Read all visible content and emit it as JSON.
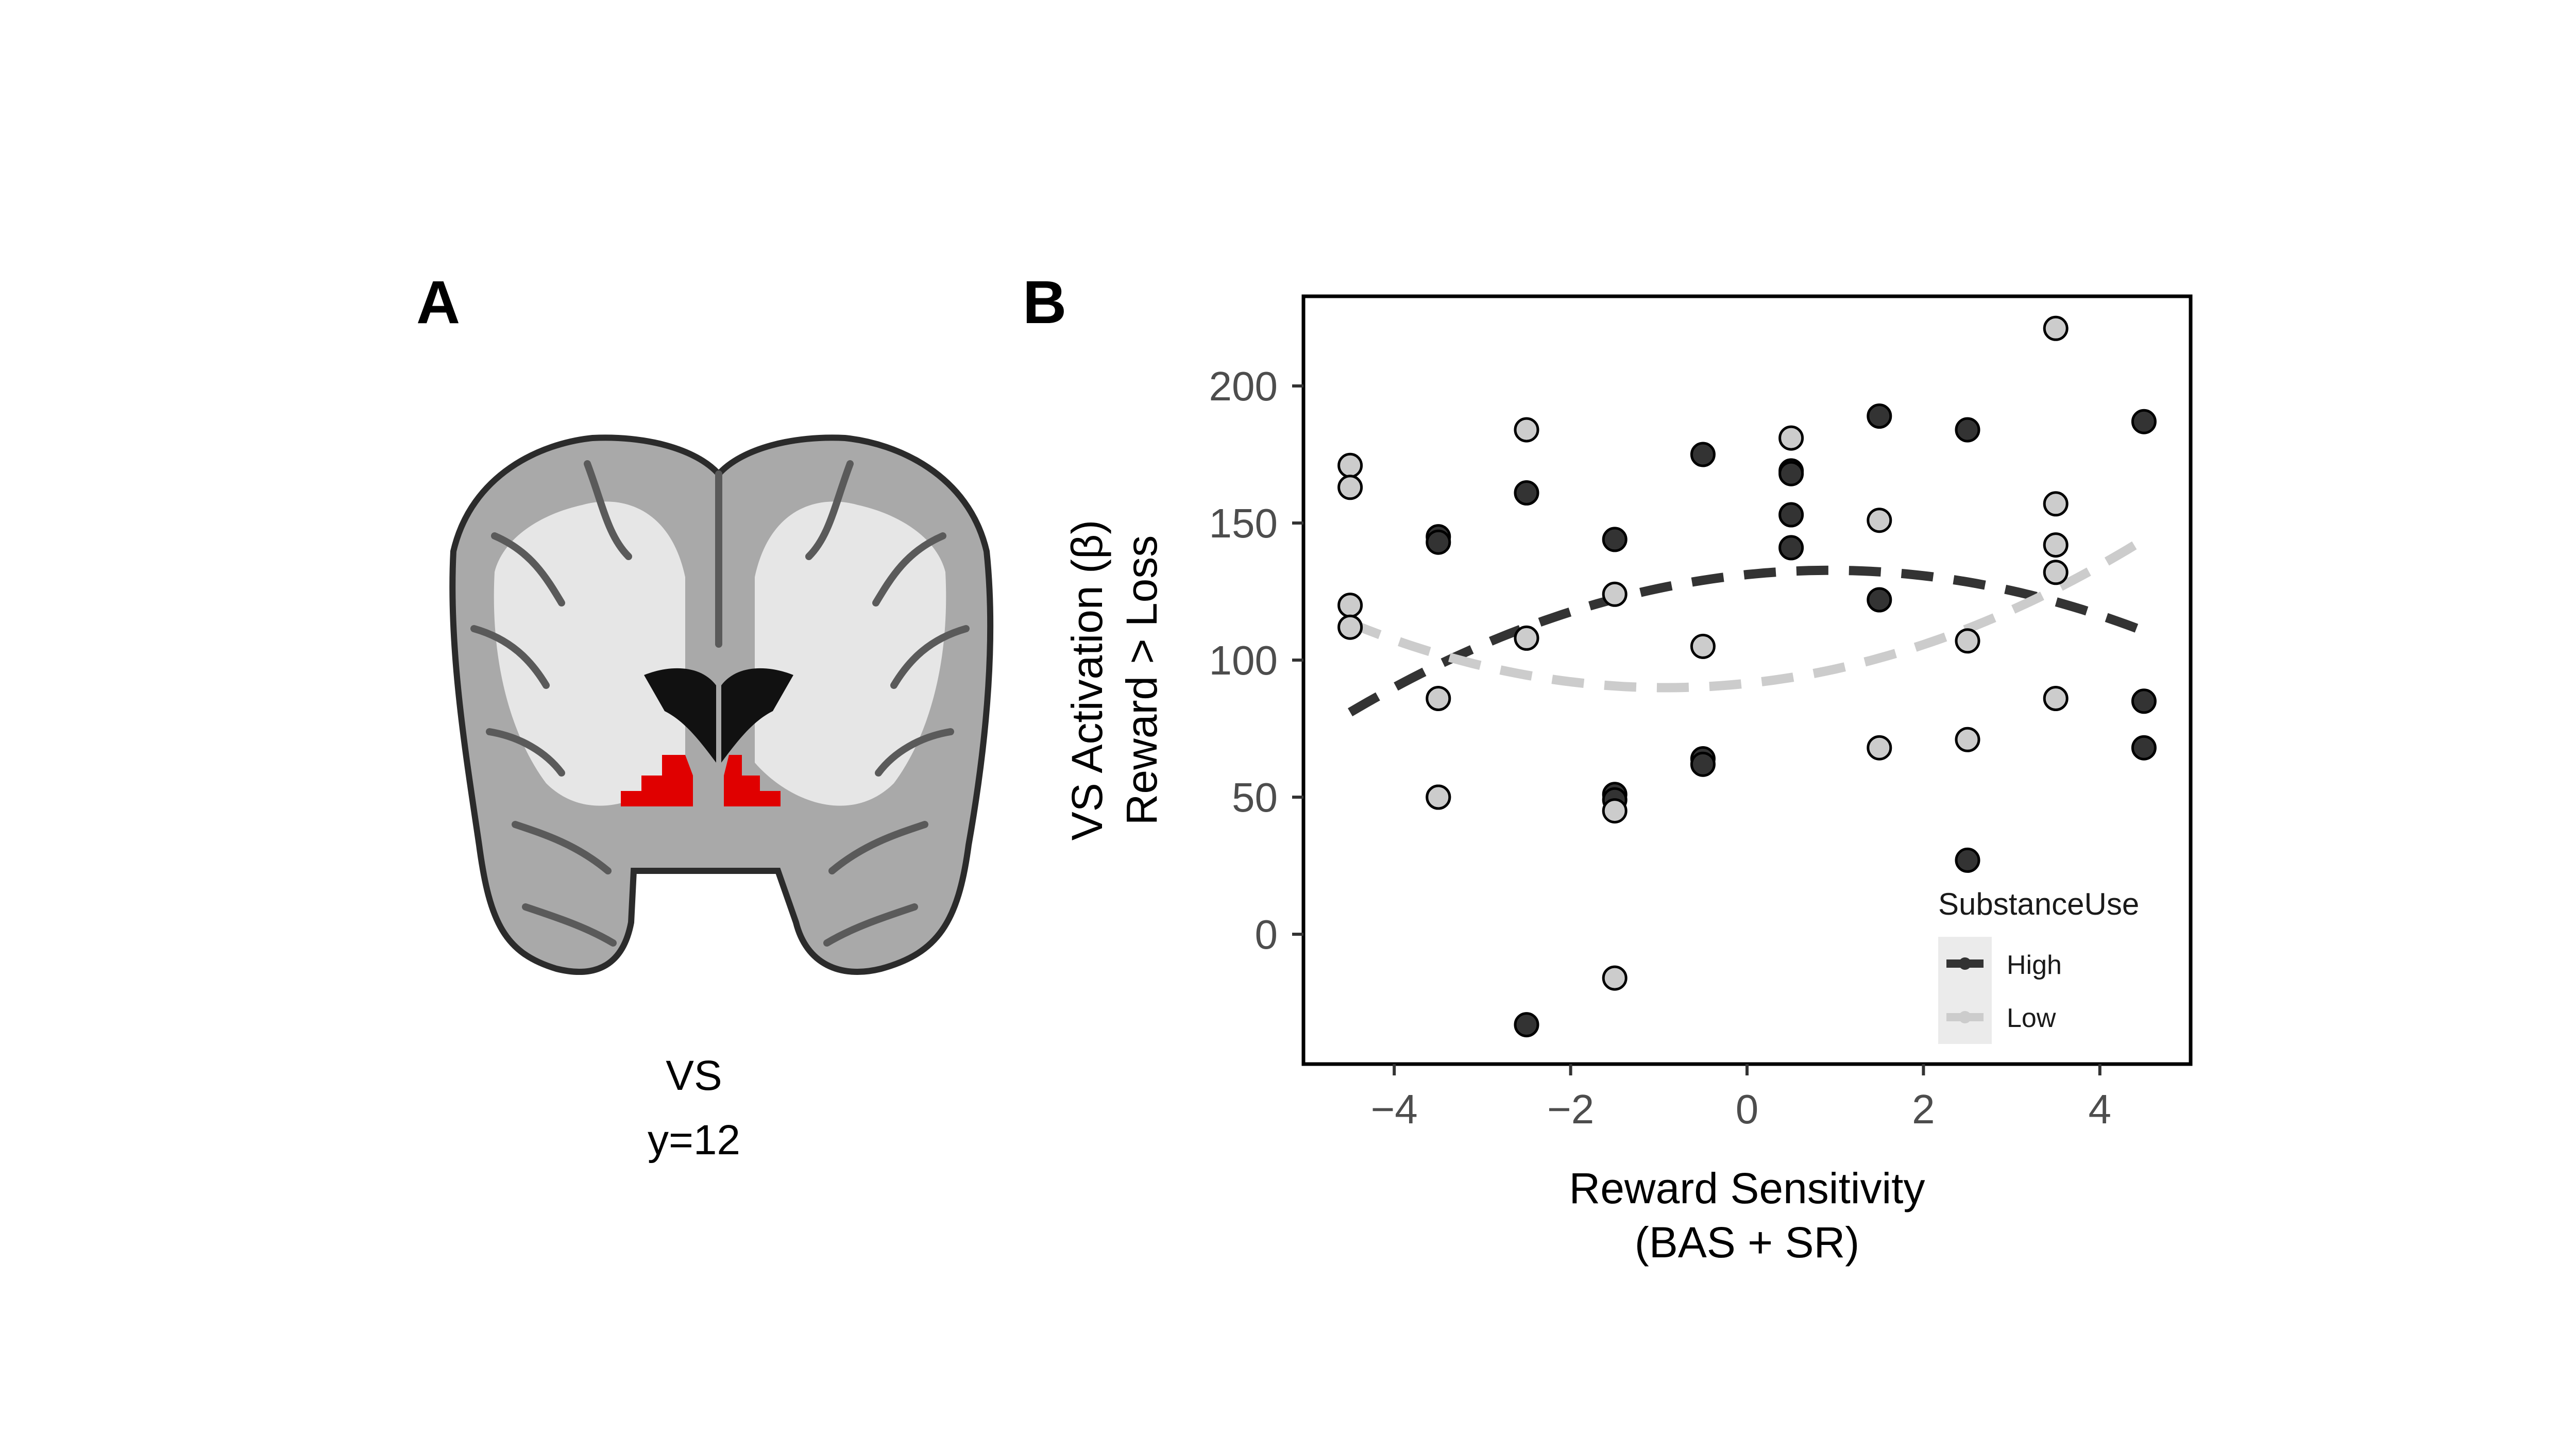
{
  "panel_a": {
    "letter": "A",
    "region_label": "VS",
    "coordinate_label": "y=12",
    "highlight_color": "#e00000"
  },
  "panel_b": {
    "letter": "B"
  },
  "chart_data": {
    "type": "scatter",
    "ylabel_line1": "VS Activation (β)",
    "ylabel_line2": "Reward > Loss",
    "xlabel_line1": "Reward Sensitivity",
    "xlabel_line2": "(BAS + SR)",
    "xlim": [
      -5,
      5
    ],
    "ylim": [
      -47,
      233
    ],
    "x_ticks": [
      -4,
      -2,
      0,
      2,
      4
    ],
    "x_tick_labels": [
      "−4",
      "−2",
      "0",
      "2",
      "4"
    ],
    "y_ticks": [
      0,
      50,
      100,
      150,
      200
    ],
    "y_tick_labels": [
      "0",
      "50",
      "100",
      "150",
      "200"
    ],
    "grid": false,
    "legend": {
      "title": "SubstanceUse",
      "position": "bottom-right",
      "entries": [
        "High",
        "Low"
      ]
    },
    "series": [
      {
        "name": "High",
        "color": "#333333",
        "points": [
          [
            -3.5,
            145
          ],
          [
            -3.5,
            143
          ],
          [
            -3.5,
            50
          ],
          [
            -2.5,
            161
          ],
          [
            -2.5,
            -33
          ],
          [
            -1.5,
            144
          ],
          [
            -1.5,
            51
          ],
          [
            -1.5,
            49
          ],
          [
            -0.5,
            175
          ],
          [
            -0.5,
            64
          ],
          [
            -0.5,
            62
          ],
          [
            0.5,
            169
          ],
          [
            0.5,
            168
          ],
          [
            0.5,
            153
          ],
          [
            0.5,
            141
          ],
          [
            1.5,
            189
          ],
          [
            1.5,
            122
          ],
          [
            2.5,
            184
          ],
          [
            2.5,
            27
          ],
          [
            4.5,
            187
          ],
          [
            4.5,
            85
          ],
          [
            4.5,
            68
          ]
        ],
        "fit_coefficients": [
          131.2,
          3.29,
          -1.75
        ]
      },
      {
        "name": "Low",
        "color": "#cccccc",
        "points": [
          [
            -4.5,
            171
          ],
          [
            -4.5,
            163
          ],
          [
            -4.5,
            120
          ],
          [
            -4.5,
            112
          ],
          [
            -3.5,
            86
          ],
          [
            -3.5,
            50
          ],
          [
            -2.5,
            184
          ],
          [
            -2.5,
            108
          ],
          [
            -1.5,
            124
          ],
          [
            -1.5,
            45
          ],
          [
            -1.5,
            -16
          ],
          [
            -0.5,
            105
          ],
          [
            0.5,
            181
          ],
          [
            1.5,
            151
          ],
          [
            1.5,
            68
          ],
          [
            2.5,
            107
          ],
          [
            2.5,
            71
          ],
          [
            3.5,
            221
          ],
          [
            3.5,
            157
          ],
          [
            3.5,
            142
          ],
          [
            3.5,
            132
          ],
          [
            3.5,
            86
          ]
        ],
        "fit_coefficients": [
          91.5,
          3.39,
          1.84
        ]
      }
    ]
  }
}
